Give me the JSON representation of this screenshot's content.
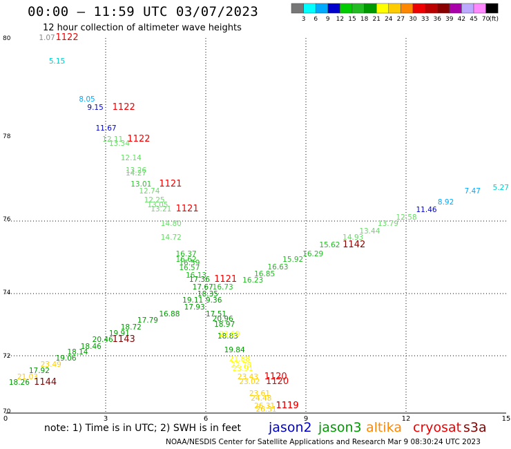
{
  "header": {
    "title": "00:00 – 11:59 UTC 03/07/2023",
    "subtitle": "12 hour collection of altimeter wave heights"
  },
  "footer": {
    "note": "note: 1) Time is in UTC; 2) SWH is in feet",
    "credit": "NOAA/NESDIS Center for Satellite Applications and Research    Mar  9 08:30:24 UTC 2023"
  },
  "satellites": [
    {
      "name": "jason2",
      "color": "#0000cc"
    },
    {
      "name": "jason3",
      "color": "#009900"
    },
    {
      "name": "altika",
      "color": "#ff8800"
    },
    {
      "name": "cryosat",
      "color": "#ee0000"
    },
    {
      "name": "s3a",
      "color": "#880000"
    }
  ],
  "chart_data": {
    "type": "scatter",
    "title": "00:00 – 11:59 UTC 03/07/2023",
    "subtitle": "12 hour collection of altimeter wave heights",
    "xlim": [
      0,
      15
    ],
    "ylim": [
      70,
      80
    ],
    "x_ticks": [
      "0",
      "3",
      "6",
      "9",
      "12",
      "15"
    ],
    "y_ticks": [
      "70",
      "72",
      "74",
      "76",
      "78",
      "80"
    ],
    "grid": true,
    "colorbar": {
      "labels": [
        "3",
        "6",
        "9",
        "12",
        "15",
        "18",
        "21",
        "24",
        "27",
        "30",
        "33",
        "36",
        "39",
        "42",
        "45",
        "70",
        "(ft)"
      ],
      "colors": [
        "#777777",
        "#00ffff",
        "#00aaff",
        "#0000cc",
        "#00cc00",
        "#22bb22",
        "#009900",
        "#ffff00",
        "#ffcc00",
        "#ff8800",
        "#ee0000",
        "#bb0000",
        "#880000",
        "#aa00aa",
        "#bbaaff",
        "#ff88ff",
        "#000000"
      ]
    },
    "swh_points": [
      {
        "x": 1.0,
        "y": 79.95,
        "v": "1.07",
        "c": "#888888"
      },
      {
        "x": 1.3,
        "y": 79.15,
        "v": "5.15",
        "c": "#00cccc"
      },
      {
        "x": 2.2,
        "y": 78.45,
        "v": "8.05",
        "c": "#00aaff"
      },
      {
        "x": 2.45,
        "y": 78.2,
        "v": "9.15",
        "c": "#0000cc"
      },
      {
        "x": 2.7,
        "y": 77.7,
        "v": "11.67",
        "c": "#0000cc"
      },
      {
        "x": 2.9,
        "y": 77.3,
        "v": "12.11",
        "c": "#66dd66"
      },
      {
        "x": 3.1,
        "y": 77.15,
        "v": "13.34",
        "c": "#66dd66"
      },
      {
        "x": 3.45,
        "y": 76.6,
        "v": "12.14",
        "c": "#66dd66"
      },
      {
        "x": 3.6,
        "y": 76.2,
        "v": "13.26",
        "c": "#66dd66"
      },
      {
        "x": 3.6,
        "y": 76.05,
        "v": "14.27",
        "c": "#66dd66"
      },
      {
        "x": 3.75,
        "y": 75.8,
        "v": "13.01",
        "c": "#33bb33"
      },
      {
        "x": 4.0,
        "y": 75.55,
        "v": "12.74",
        "c": "#66dd66"
      },
      {
        "x": 4.15,
        "y": 75.25,
        "v": "12.25",
        "c": "#66dd66"
      },
      {
        "x": 4.25,
        "y": 75.1,
        "v": "13.05",
        "c": "#66dd66"
      },
      {
        "x": 4.35,
        "y": 74.95,
        "v": "13.21",
        "c": "#66dd66"
      },
      {
        "x": 4.65,
        "y": 74.5,
        "v": "14.80",
        "c": "#66dd66"
      },
      {
        "x": 4.65,
        "y": 74.05,
        "v": "14.72",
        "c": "#66dd66"
      },
      {
        "x": 5.1,
        "y": 73.45,
        "v": "16.37",
        "c": "#22bb22"
      },
      {
        "x": 5.1,
        "y": 73.25,
        "v": "16.62",
        "c": "#22bb22"
      },
      {
        "x": 5.2,
        "y": 73.15,
        "v": "16.59",
        "c": "#22bb22"
      },
      {
        "x": 5.2,
        "y": 72.95,
        "v": "16.57",
        "c": "#22bb22"
      },
      {
        "x": 5.4,
        "y": 72.6,
        "v": "16.13",
        "c": "#22bb22"
      },
      {
        "x": 5.5,
        "y": 72.45,
        "v": "17.36",
        "c": "#009900"
      },
      {
        "x": 5.6,
        "y": 72.2,
        "v": "17.67",
        "c": "#009900"
      },
      {
        "x": 6.2,
        "y": 72.2,
        "v": "16.73",
        "c": "#22bb22"
      },
      {
        "x": 5.75,
        "y": 71.95,
        "v": "18.35",
        "c": "#009900"
      },
      {
        "x": 5.3,
        "y": 71.7,
        "v": "19.11",
        "c": "#009900"
      },
      {
        "x": 6.0,
        "y": 71.7,
        "v": "9.36",
        "c": "#009900"
      },
      {
        "x": 6.0,
        "y": 71.45,
        "v": "17.51",
        "c": "#009900"
      },
      {
        "x": 6.2,
        "y": 70.85,
        "v": "20.96",
        "c": "#009900"
      },
      {
        "x": 6.25,
        "y": 70.65,
        "v": "18.97",
        "c": "#009900"
      },
      {
        "x": 6.35,
        "y": 70.25,
        "v": "18.83",
        "c": "#009900"
      },
      {
        "x": 6.4,
        "y": 70.35,
        "v": "23.69",
        "c": "#ffff00"
      },
      {
        "x": 6.55,
        "y": 69.5,
        "v": "19.84",
        "c": "#009900"
      },
      {
        "x": 6.7,
        "y": 69.15,
        "v": "21.88",
        "c": "#ffff00"
      },
      {
        "x": 6.75,
        "y": 69.0,
        "v": "22.78",
        "c": "#ffff00"
      },
      {
        "x": 6.8,
        "y": 68.85,
        "v": "23.91",
        "c": "#ffff00"
      },
      {
        "x": 6.95,
        "y": 68.35,
        "v": "23.43",
        "c": "#ffcc00"
      },
      {
        "x": 7.0,
        "y": 68.2,
        "v": "23.02",
        "c": "#ffcc00"
      },
      {
        "x": 7.3,
        "y": 67.65,
        "v": "23.61",
        "c": "#ffcc00"
      },
      {
        "x": 7.35,
        "y": 67.45,
        "v": "24.48",
        "c": "#ffcc00"
      },
      {
        "x": 7.45,
        "y": 67.1,
        "v": "26.31",
        "c": "#ffcc00"
      },
      {
        "x": 7.5,
        "y": 66.9,
        "v": "26.31",
        "c": "#ffcc00"
      },
      {
        "x": 5.35,
        "y": 71.65,
        "v": "17.93",
        "c": "#009900"
      },
      {
        "x": 4.6,
        "y": 71.45,
        "v": "16.88",
        "c": "#009900"
      },
      {
        "x": 3.95,
        "y": 71.2,
        "v": "17.79",
        "c": "#009900"
      },
      {
        "x": 3.45,
        "y": 70.95,
        "v": "18.72",
        "c": "#009900"
      },
      {
        "x": 3.1,
        "y": 70.7,
        "v": "19.91",
        "c": "#009900"
      },
      {
        "x": 2.6,
        "y": 70.5,
        "v": "20.46",
        "c": "#009900"
      },
      {
        "x": 2.25,
        "y": 70.3,
        "v": "18.46",
        "c": "#009900"
      },
      {
        "x": 1.85,
        "y": 70.05,
        "v": "18.14",
        "c": "#009900"
      },
      {
        "x": 1.5,
        "y": 69.7,
        "v": "19.06",
        "c": "#009900"
      },
      {
        "x": 1.05,
        "y": 69.45,
        "v": "23.49",
        "c": "#ffcc00"
      },
      {
        "x": 0.7,
        "y": 69.2,
        "v": "17.92",
        "c": "#009900"
      },
      {
        "x": 0.35,
        "y": 68.95,
        "v": "21.03",
        "c": "#ffcc00"
      },
      {
        "x": 0.1,
        "y": 68.75,
        "v": "18.26",
        "c": "#009900"
      },
      {
        "x": 7.1,
        "y": 72.7,
        "v": "16.23",
        "c": "#22bb22"
      },
      {
        "x": 7.45,
        "y": 72.85,
        "v": "16.85",
        "c": "#22bb22"
      },
      {
        "x": 7.85,
        "y": 73.0,
        "v": "16.63",
        "c": "#22bb22"
      },
      {
        "x": 8.3,
        "y": 73.25,
        "v": "15.92",
        "c": "#22bb22"
      },
      {
        "x": 8.9,
        "y": 73.45,
        "v": "16.29",
        "c": "#22bb22"
      },
      {
        "x": 9.4,
        "y": 73.7,
        "v": "15.62",
        "c": "#22bb22"
      },
      {
        "x": 10.1,
        "y": 74.05,
        "v": "14.93",
        "c": "#66dd66"
      },
      {
        "x": 10.6,
        "y": 74.25,
        "v": "13.44",
        "c": "#66dd66"
      },
      {
        "x": 11.15,
        "y": 74.5,
        "v": "13.79",
        "c": "#66dd66"
      },
      {
        "x": 11.7,
        "y": 74.8,
        "v": "12.58",
        "c": "#66dd66"
      },
      {
        "x": 12.3,
        "y": 75.0,
        "v": "11.46",
        "c": "#0000cc"
      },
      {
        "x": 12.95,
        "y": 75.3,
        "v": "8.92",
        "c": "#00aaff"
      },
      {
        "x": 13.75,
        "y": 75.55,
        "v": "7.47",
        "c": "#00aaff"
      },
      {
        "x": 14.6,
        "y": 75.85,
        "v": "5.27",
        "c": "#00cccc"
      }
    ],
    "pass_labels": [
      {
        "x": 1.5,
        "y": 79.95,
        "v": "1122",
        "c": "#ee0000"
      },
      {
        "x": 3.2,
        "y": 78.2,
        "v": "1122",
        "c": "#ee0000"
      },
      {
        "x": 3.65,
        "y": 77.3,
        "v": "1122",
        "c": "#ee0000"
      },
      {
        "x": 4.6,
        "y": 75.8,
        "v": "1121",
        "c": "#ee0000"
      },
      {
        "x": 5.1,
        "y": 74.95,
        "v": "1121",
        "c": "#ee0000"
      },
      {
        "x": 6.25,
        "y": 72.45,
        "v": "1121",
        "c": "#ee0000"
      },
      {
        "x": 10.1,
        "y": 73.7,
        "v": "1142",
        "c": "#880000"
      },
      {
        "x": 3.2,
        "y": 70.5,
        "v": "1143",
        "c": "#880000"
      },
      {
        "x": 0.85,
        "y": 68.75,
        "v": "1144",
        "c": "#880000"
      },
      {
        "x": 7.75,
        "y": 68.35,
        "v": "1120",
        "c": "#ee0000"
      },
      {
        "x": 7.8,
        "y": 68.2,
        "v": "1120",
        "c": "#ee0000"
      },
      {
        "x": 8.1,
        "y": 67.25,
        "v": "1119",
        "c": "#ee0000"
      },
      {
        "x": 8.1,
        "y": 67.05,
        "v": "1119",
        "c": "#ee0000"
      }
    ]
  }
}
